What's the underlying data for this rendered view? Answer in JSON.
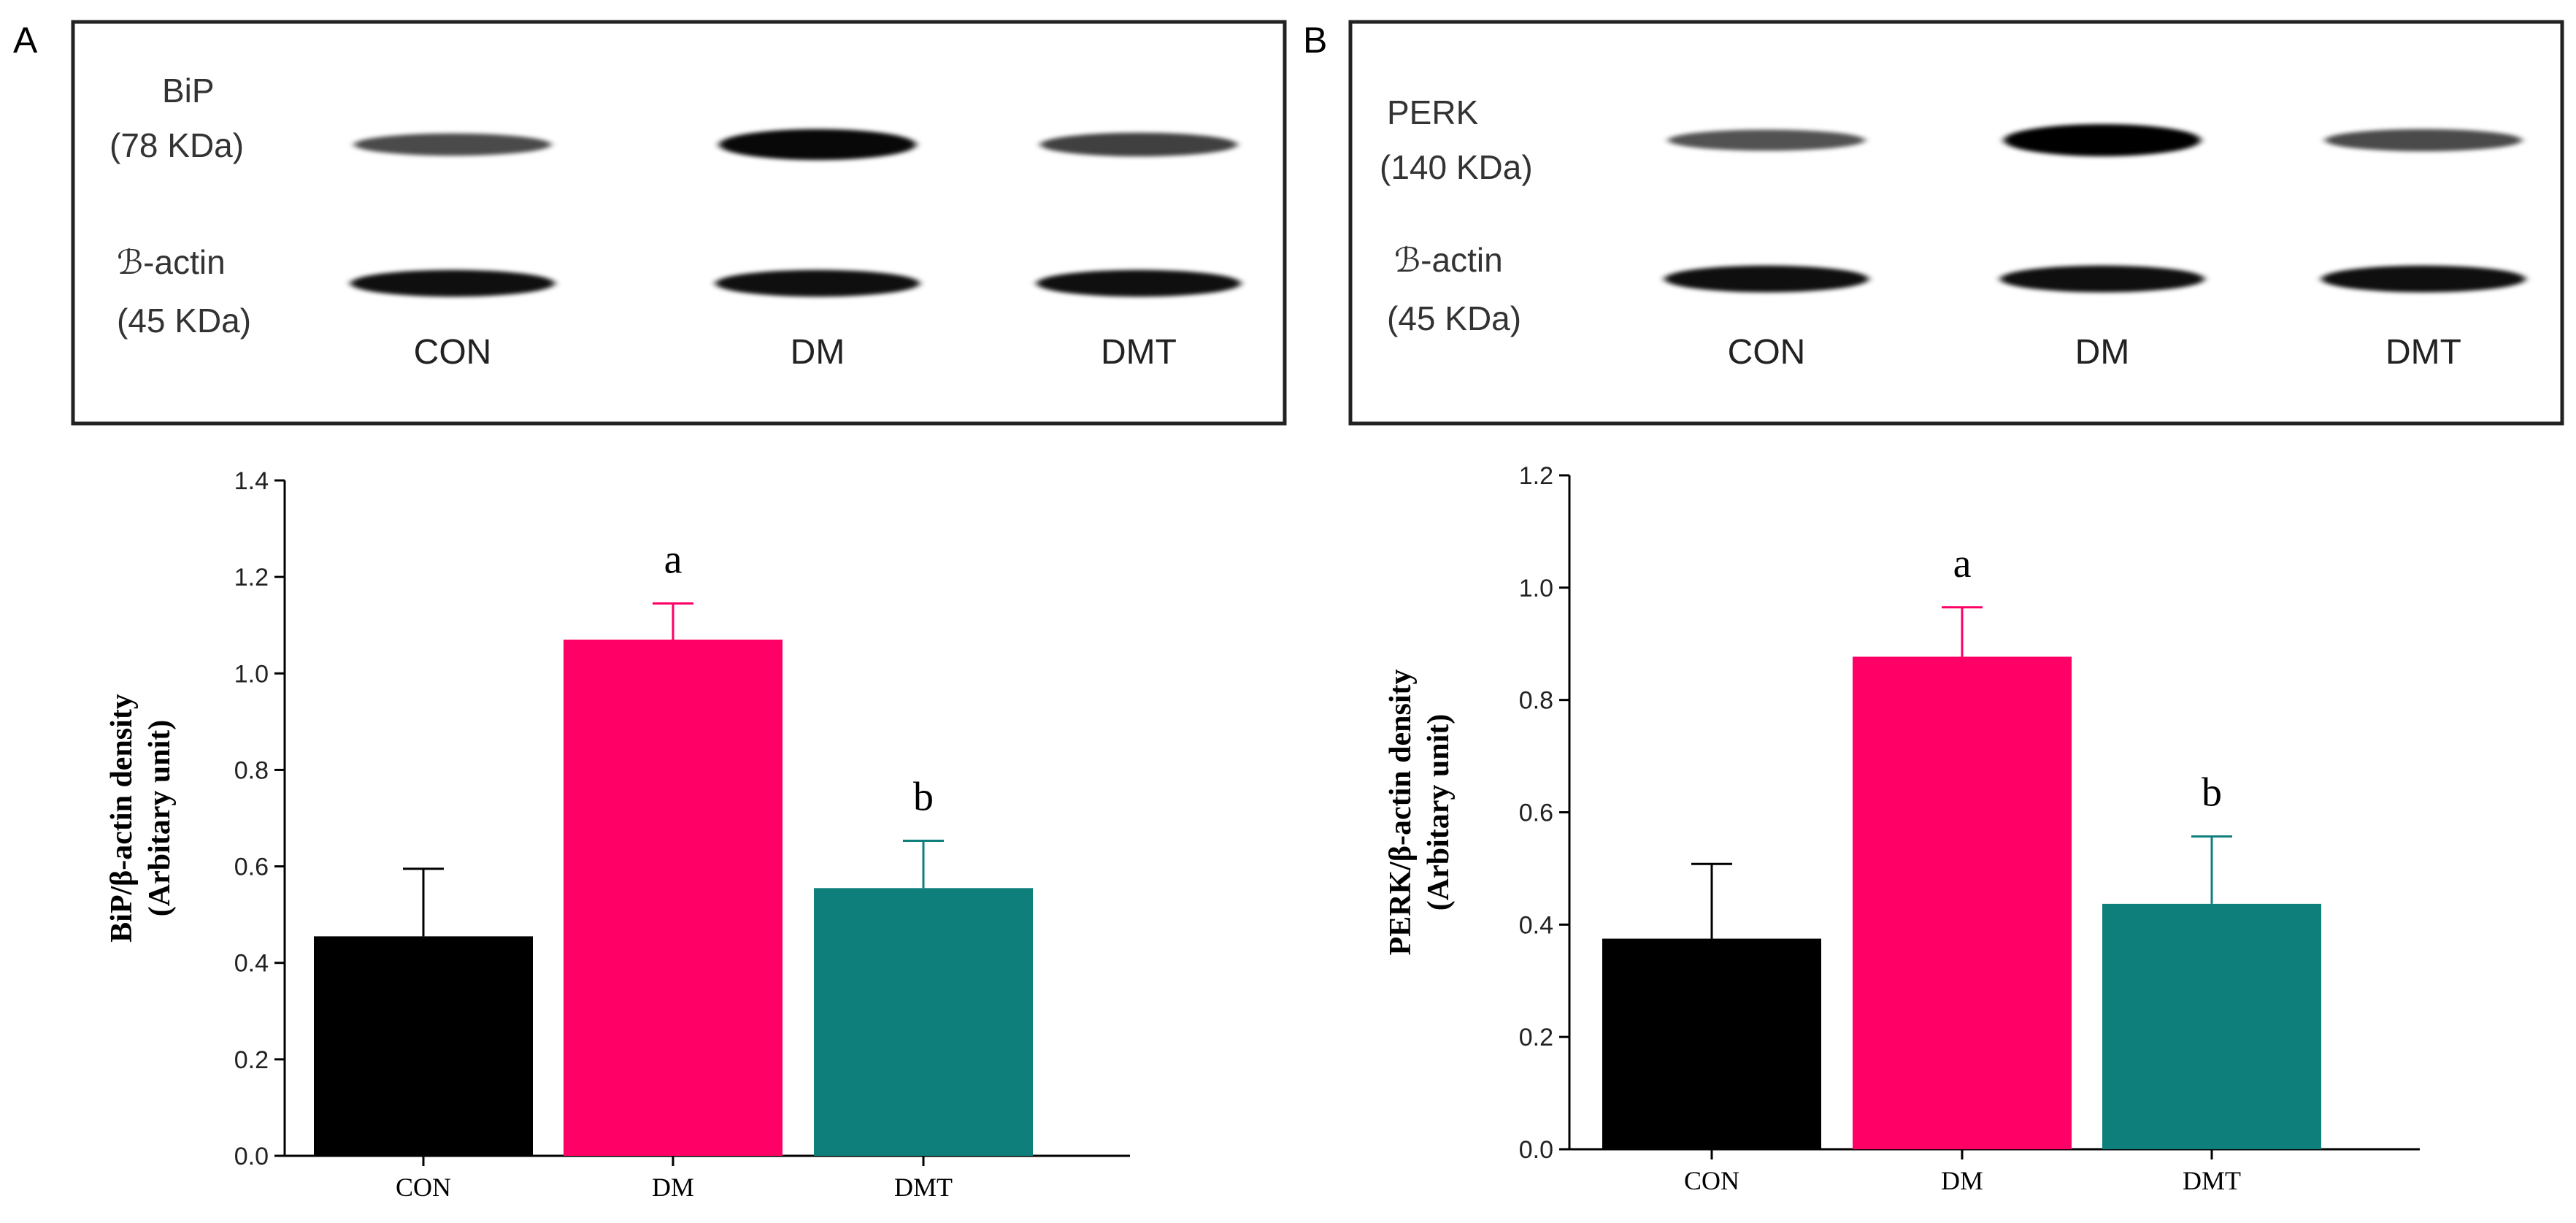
{
  "panels": [
    {
      "letter": "A",
      "blot": {
        "target_label": "BiP",
        "target_size": "(78 KDa)",
        "control_label": "ℬ-actin",
        "control_size": "(45 KDa)",
        "lanes": [
          "CON",
          "DM",
          "DMT"
        ],
        "target_intensity": [
          0.55,
          0.95,
          0.62
        ],
        "control_intensity": [
          0.9,
          0.9,
          0.9
        ]
      }
    },
    {
      "letter": "B",
      "blot": {
        "target_label": "PERK",
        "target_size": "(140 KDa)",
        "control_label": "ℬ-actin",
        "control_size": "(45 KDa)",
        "lanes": [
          "CON",
          "DM",
          "DMT"
        ],
        "target_intensity": [
          0.5,
          1.0,
          0.55
        ],
        "control_intensity": [
          0.9,
          0.9,
          0.9
        ]
      }
    }
  ],
  "chart_data": [
    {
      "type": "bar",
      "categories": [
        "CON",
        "DM",
        "DMT"
      ],
      "values": [
        0.455,
        1.07,
        0.555
      ],
      "errors": [
        0.14,
        0.075,
        0.098
      ],
      "annotations": [
        "",
        "a",
        "b"
      ],
      "colors": [
        "#000000",
        "#ff0066",
        "#0f7f7c"
      ],
      "ylabel_line1": "BiP/β-actin density",
      "ylabel_line2": "(Arbitary unit)",
      "ylim": [
        0,
        1.4
      ],
      "yticks": [
        "0.0",
        "0.2",
        "0.4",
        "0.6",
        "0.8",
        "1.0",
        "1.2",
        "1.4"
      ]
    },
    {
      "type": "bar",
      "categories": [
        "CON",
        "DM",
        "DMT"
      ],
      "values": [
        0.375,
        0.877,
        0.437
      ],
      "errors": [
        0.133,
        0.088,
        0.12
      ],
      "annotations": [
        "",
        "a",
        "b"
      ],
      "colors": [
        "#000000",
        "#ff0066",
        "#0f7f7c"
      ],
      "ylabel_line1": "PERK/β-actin density",
      "ylabel_line2": "(Arbitary unit)",
      "ylim": [
        0,
        1.2
      ],
      "yticks": [
        "0.0",
        "0.2",
        "0.4",
        "0.6",
        "0.8",
        "1.0",
        "1.2"
      ]
    }
  ]
}
